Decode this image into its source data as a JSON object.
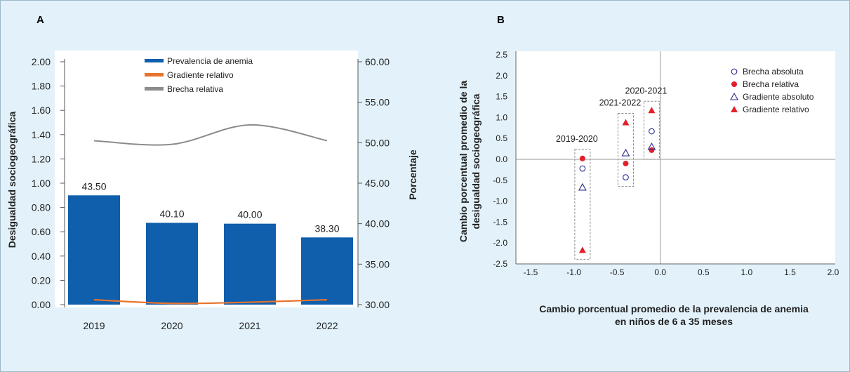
{
  "panels": {
    "a": "A",
    "b": "B"
  },
  "colors": {
    "bar": "#0f5fad",
    "gradient": "#e8742c",
    "gap": "#8c8c8c",
    "navy": "#2a2f8f",
    "red": "#e2202a"
  },
  "chart_data": [
    {
      "type": "bar",
      "categories": [
        "2019",
        "2020",
        "2021",
        "2022"
      ],
      "series": [
        {
          "name": "Prevalencia de anemia",
          "axis": "right",
          "values": [
            43.5,
            40.1,
            40.0,
            38.3
          ],
          "value_labels": [
            "43.50",
            "40.10",
            "40.00",
            "38.30"
          ]
        },
        {
          "name": "Gradiente relativo",
          "type": "line",
          "axis": "left",
          "values": [
            0.04,
            0.01,
            0.02,
            0.04
          ]
        },
        {
          "name": "Brecha relativa",
          "type": "line",
          "axis": "left",
          "values": [
            1.35,
            1.32,
            1.48,
            1.35
          ]
        }
      ],
      "ylabel_left": "Desigualdad sociogeográfica",
      "ylabel_right": "Porcentaje",
      "ylim_left": [
        0,
        2
      ],
      "ylim_right": [
        30,
        60
      ],
      "yticks_left": [
        "0.00",
        "0.20",
        "0.40",
        "0.60",
        "0.80",
        "1.00",
        "1.20",
        "1.40",
        "1.60",
        "1.80",
        "2.00"
      ],
      "yticks_right": [
        "30.00",
        "35.00",
        "40.00",
        "45.00",
        "50.00",
        "55.00",
        "60.00"
      ],
      "legend_position": "top"
    },
    {
      "type": "scatter",
      "xlabel": "Cambio porcentual promedio de la prevalencia de anemia",
      "xlabel2": "en niños de 6 a 35 meses",
      "ylabel": "Cambio porcentual promedio de la",
      "ylabel2": "desigualdad sociogeográfica",
      "xlim": [
        -1.5,
        2.0
      ],
      "ylim": [
        -2.5,
        2.5
      ],
      "xticks": [
        "-1.5",
        "-1.0",
        "-0.5",
        "0.0",
        "0.5",
        "1.0",
        "1.5",
        "2.0"
      ],
      "yticks": [
        "2.5",
        "2.0",
        "1.5",
        "1.0",
        "0.5",
        "0.0",
        "-0.5",
        "-1.0",
        "-1.5",
        "-2.0",
        "-2.5"
      ],
      "groups": [
        {
          "label": "2019-2020",
          "x": -0.9
        },
        {
          "label": "2021-2022",
          "x": -0.4
        },
        {
          "label": "2020-2021",
          "x": -0.1
        }
      ],
      "series": [
        {
          "name": "Brecha absoluta",
          "marker": "open-circle",
          "x": [
            -0.9,
            -0.4,
            -0.1
          ],
          "y": [
            -0.22,
            -0.43,
            0.67
          ]
        },
        {
          "name": "Brecha relativa",
          "marker": "filled-circle",
          "x": [
            -0.9,
            -0.4,
            -0.1
          ],
          "y": [
            0.02,
            -0.1,
            0.22
          ]
        },
        {
          "name": "Gradiente absoluto",
          "marker": "open-triangle",
          "x": [
            -0.9,
            -0.4,
            -0.1
          ],
          "y": [
            -0.67,
            0.15,
            0.3
          ]
        },
        {
          "name": "Gradiente relativo",
          "marker": "filled-triangle",
          "x": [
            -0.9,
            -0.4,
            -0.1
          ],
          "y": [
            -2.17,
            0.88,
            1.17
          ]
        }
      ],
      "legend_position": "top-right"
    }
  ]
}
